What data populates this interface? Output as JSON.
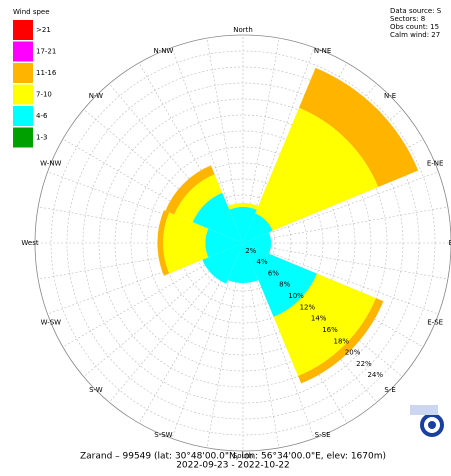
{
  "chart_data": {
    "type": "windrose",
    "legend_title": "Wind spee",
    "info": [
      "Data source: S",
      "Sectors: 8",
      "Obs count: 15",
      "Calm wind: 27"
    ],
    "direction_labels": [
      "North",
      "N-NE",
      "N-E",
      "E-NE",
      "East",
      "E-SE",
      "S-E",
      "S-SE",
      "South",
      "S-SW",
      "S-W",
      "W-SW",
      "West",
      "W-NW",
      "N-W",
      "N-NW"
    ],
    "series": [
      {
        "name": ">21",
        "color": "#ff0000",
        "values": [
          0,
          0,
          0,
          0,
          0,
          0,
          0,
          0
        ]
      },
      {
        "name": "17-21",
        "color": "#ff00ff",
        "values": [
          0,
          0,
          0,
          0,
          0,
          0,
          0,
          0
        ]
      },
      {
        "name": "11-16",
        "color": "#ffb400",
        "values": [
          0,
          5.4,
          0,
          1,
          0,
          0,
          0.7,
          1.2
        ]
      },
      {
        "name": "7-10",
        "color": "#ffff00",
        "values": [
          0.5,
          14.3,
          0,
          8,
          0,
          0,
          5.3,
          2.5
        ]
      },
      {
        "name": "4-6",
        "color": "#00ffff",
        "values": [
          4.5,
          4,
          3.5,
          10,
          5,
          5.5,
          4.7,
          6.8
        ]
      },
      {
        "name": "1-3",
        "color": "#00a000",
        "values": [
          0,
          0,
          0,
          0,
          0,
          0,
          0,
          0
        ]
      }
    ],
    "rlim": [
      0,
      26
    ],
    "rticks": [
      {
        "value": 2,
        "label": "2%"
      },
      {
        "value": 4,
        "label": "4%"
      },
      {
        "value": 6,
        "label": "6%"
      },
      {
        "value": 8,
        "label": "8%"
      },
      {
        "value": 10,
        "label": "10%"
      },
      {
        "value": 12,
        "label": "12%"
      },
      {
        "value": 14,
        "label": "14%"
      },
      {
        "value": 16,
        "label": "16%"
      },
      {
        "value": 18,
        "label": "18%"
      },
      {
        "value": 20,
        "label": "20%"
      },
      {
        "value": 22,
        "label": "22%"
      },
      {
        "value": 24,
        "label": "24%"
      }
    ],
    "grid": true,
    "caption": [
      "Zarand – 99549 (lat: 30°48'00.0\"N, lon: 56°34'00.0\"E, elev: 1670m)",
      "2022-09-23 - 2022-10-22"
    ]
  }
}
